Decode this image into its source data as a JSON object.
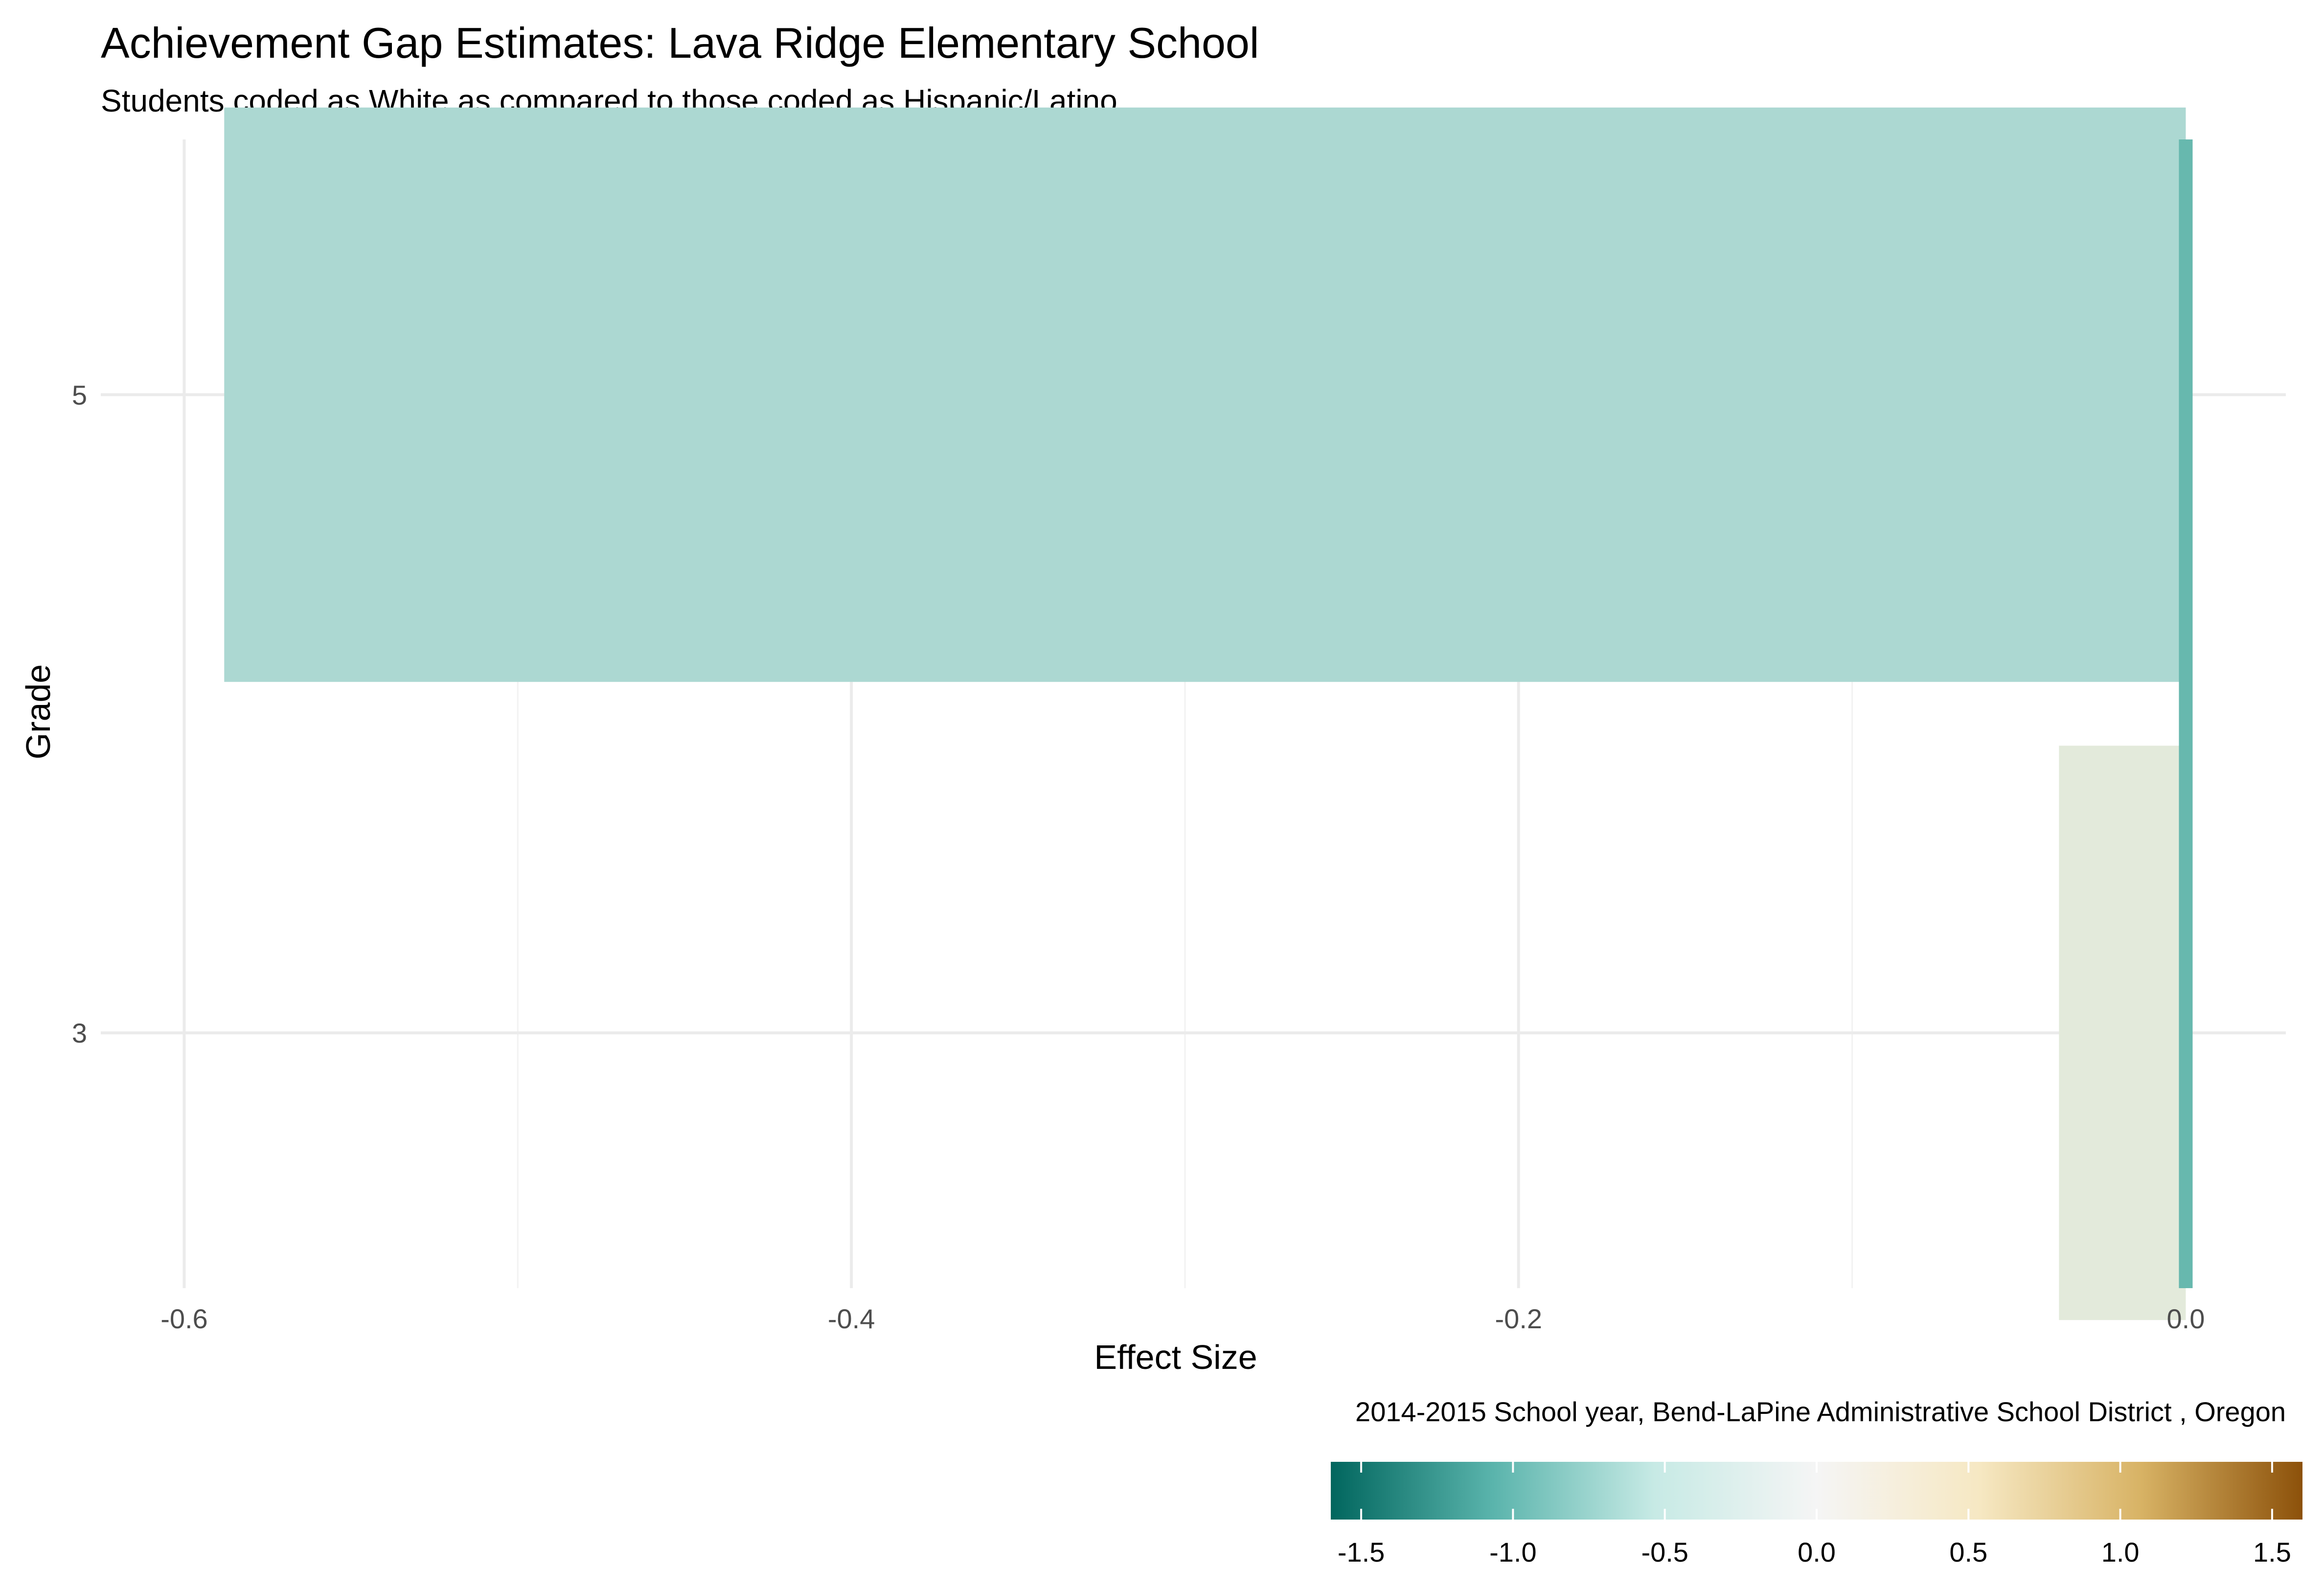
{
  "chart_data": {
    "type": "bar",
    "orientation": "horizontal",
    "title": "Achievement Gap Estimates: Lava Ridge Elementary School",
    "subtitle": "Students coded as White as compared to those coded as Hispanic/Latino",
    "xlabel": "Effect Size",
    "ylabel": "Grade",
    "caption": "2014-2015 School year,  Bend-LaPine Administrative School District , Oregon",
    "xlim": [
      -0.625,
      0.03
    ],
    "categories": [
      "3",
      "5"
    ],
    "values": [
      -0.038,
      -0.588
    ],
    "bar_colors": [
      "#e3eadb",
      "#acd8d2"
    ],
    "x_ticks": [
      -0.6,
      -0.4,
      -0.2,
      0.0
    ],
    "x_tick_labels": [
      "-0.6",
      "-0.4",
      "-0.2",
      "0.0"
    ],
    "reference_line": {
      "x": 0.0,
      "color": "#67b8ae"
    },
    "grid": true,
    "legend": {
      "type": "colorbar",
      "position": "bottom-right",
      "range": [
        -1.6,
        1.6
      ],
      "ticks": [
        -1.5,
        -1.0,
        -0.5,
        0.0,
        0.5,
        1.0,
        1.5
      ],
      "tick_labels": [
        "-1.5",
        "-1.0",
        "-0.5",
        "0.0",
        "0.5",
        "1.0",
        "1.5"
      ],
      "colors": [
        "#01665e",
        "#5ab4ac",
        "#c7eae5",
        "#f5f5f5",
        "#f6e8c3",
        "#d8b365",
        "#8c510a"
      ]
    }
  }
}
